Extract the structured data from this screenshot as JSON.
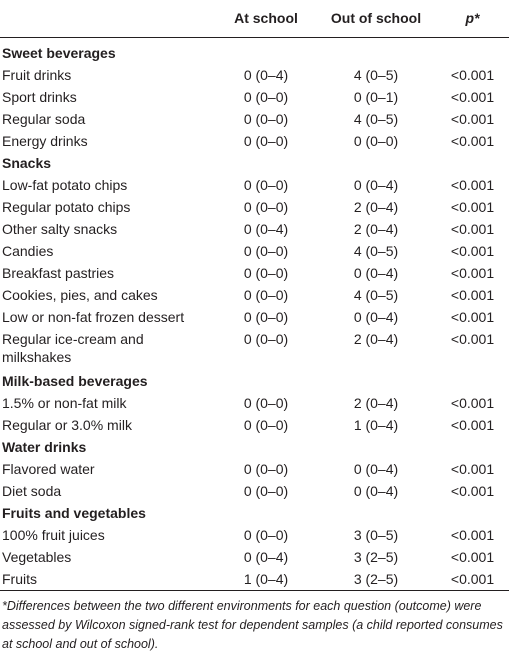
{
  "header": {
    "col_item": "",
    "col_school": "At school",
    "col_out": "Out of school",
    "col_p": "p*"
  },
  "rows": [
    {
      "type": "section",
      "label": "Sweet beverages"
    },
    {
      "type": "item",
      "label": "Fruit drinks",
      "school": "0 (0–4)",
      "out": "4 (0–5)",
      "p": "<0.001"
    },
    {
      "type": "item",
      "label": "Sport drinks",
      "school": "0 (0–0)",
      "out": "0 (0–1)",
      "p": "<0.001"
    },
    {
      "type": "item",
      "label": "Regular soda",
      "school": "0 (0–0)",
      "out": "4 (0–5)",
      "p": "<0.001"
    },
    {
      "type": "item",
      "label": "Energy drinks",
      "school": "0 (0–0)",
      "out": "0 (0–0)",
      "p": "<0.001"
    },
    {
      "type": "section",
      "label": "Snacks"
    },
    {
      "type": "item",
      "label": "Low-fat potato chips",
      "school": "0 (0–0)",
      "out": "0 (0–4)",
      "p": "<0.001"
    },
    {
      "type": "item",
      "label": "Regular potato chips",
      "school": "0 (0–0)",
      "out": "2 (0–4)",
      "p": "<0.001"
    },
    {
      "type": "item",
      "label": "Other salty snacks",
      "school": "0 (0–4)",
      "out": "2 (0–4)",
      "p": "<0.001"
    },
    {
      "type": "item",
      "label": "Candies",
      "school": "0 (0–0)",
      "out": "4 (0–5)",
      "p": "<0.001"
    },
    {
      "type": "item",
      "label": "Breakfast pastries",
      "school": "0 (0–0)",
      "out": "0 (0–4)",
      "p": "<0.001"
    },
    {
      "type": "item",
      "label": "Cookies, pies, and cakes",
      "school": "0 (0–0)",
      "out": "4 (0–5)",
      "p": "<0.001"
    },
    {
      "type": "item",
      "label": "Low or non-fat frozen dessert",
      "school": "0 (0–0)",
      "out": "0 (0–4)",
      "p": "<0.001"
    },
    {
      "type": "item2",
      "label": "Regular ice-cream and",
      "label2": "milkshakes",
      "school": "0 (0–0)",
      "out": "2 (0–4)",
      "p": "<0.001"
    },
    {
      "type": "section",
      "label": "Milk-based beverages"
    },
    {
      "type": "item",
      "label": "1.5% or non-fat milk",
      "school": "0 (0–0)",
      "out": "2 (0–4)",
      "p": "<0.001"
    },
    {
      "type": "item",
      "label": "Regular or 3.0% milk",
      "school": "0 (0–0)",
      "out": "1 (0–4)",
      "p": "<0.001"
    },
    {
      "type": "section",
      "label": "Water drinks"
    },
    {
      "type": "item",
      "label": "Flavored water",
      "school": "0 (0–0)",
      "out": "0 (0–4)",
      "p": "<0.001"
    },
    {
      "type": "item",
      "label": "Diet soda",
      "school": "0 (0–0)",
      "out": "0 (0–4)",
      "p": "<0.001"
    },
    {
      "type": "section",
      "label": "Fruits and vegetables"
    },
    {
      "type": "item",
      "label": "100% fruit juices",
      "school": "0 (0–0)",
      "out": "3 (0–5)",
      "p": "<0.001"
    },
    {
      "type": "item",
      "label": "Vegetables",
      "school": "0 (0–4)",
      "out": "3 (2–5)",
      "p": "<0.001"
    },
    {
      "type": "item",
      "label": "Fruits",
      "school": "1 (0–4)",
      "out": "3 (2–5)",
      "p": "<0.001"
    }
  ],
  "footnote": "*Differences between the two different environments for each question (outcome) were assessed by Wilcoxon signed-rank test for dependent samples (a child reported consumes at school and out of school)."
}
